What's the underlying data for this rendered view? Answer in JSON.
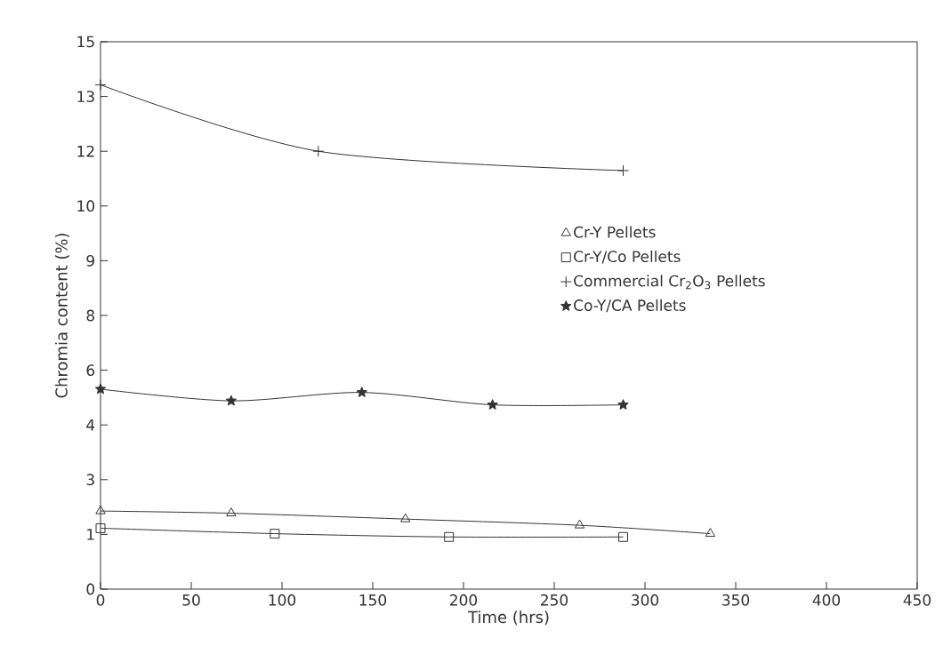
{
  "chart_data": {
    "type": "line",
    "xlabel": "Time (hrs)",
    "ylabel": "Chromia content (%)",
    "xlim": [
      0,
      450
    ],
    "xticks": [
      0,
      50,
      100,
      150,
      200,
      250,
      300,
      350,
      400,
      450
    ],
    "ylim": [
      0,
      15
    ],
    "yticks": [
      {
        "value": 0,
        "label": "0"
      },
      {
        "value": 1.5,
        "label": "1"
      },
      {
        "value": 3,
        "label": "3"
      },
      {
        "value": 4.5,
        "label": "4"
      },
      {
        "value": 6,
        "label": "6"
      },
      {
        "value": 7.5,
        "label": "8"
      },
      {
        "value": 9,
        "label": "9"
      },
      {
        "value": 10.5,
        "label": "10"
      },
      {
        "value": 12,
        "label": "12"
      },
      {
        "value": 13.5,
        "label": "13"
      },
      {
        "value": 15,
        "label": "15"
      }
    ],
    "grid": false,
    "legend": "right",
    "series": [
      {
        "name": "Cr-Y Pellets",
        "color": "#333333",
        "marker": "triangle",
        "x": [
          0,
          72,
          168,
          264,
          336
        ],
        "values": [
          2.14,
          2.08,
          1.92,
          1.75,
          1.52
        ]
      },
      {
        "name": "Cr-Y/Co Pellets",
        "color": "#333333",
        "marker": "square",
        "x": [
          0,
          96,
          192,
          288
        ],
        "values": [
          1.67,
          1.52,
          1.43,
          1.43
        ]
      },
      {
        "name": "Commercial Cr$_{2}$O$_{3}$ Pellets",
        "color": "#333333",
        "marker": "cross",
        "x": [
          0,
          120,
          288
        ],
        "values": [
          13.82,
          12.0,
          11.47
        ]
      },
      {
        "name": "Co-Y/CA Pellets",
        "color": "#333333",
        "marker": "star",
        "x": [
          0,
          72,
          144,
          216,
          288
        ],
        "values": [
          5.48,
          5.16,
          5.39,
          5.05,
          5.05
        ]
      }
    ]
  }
}
